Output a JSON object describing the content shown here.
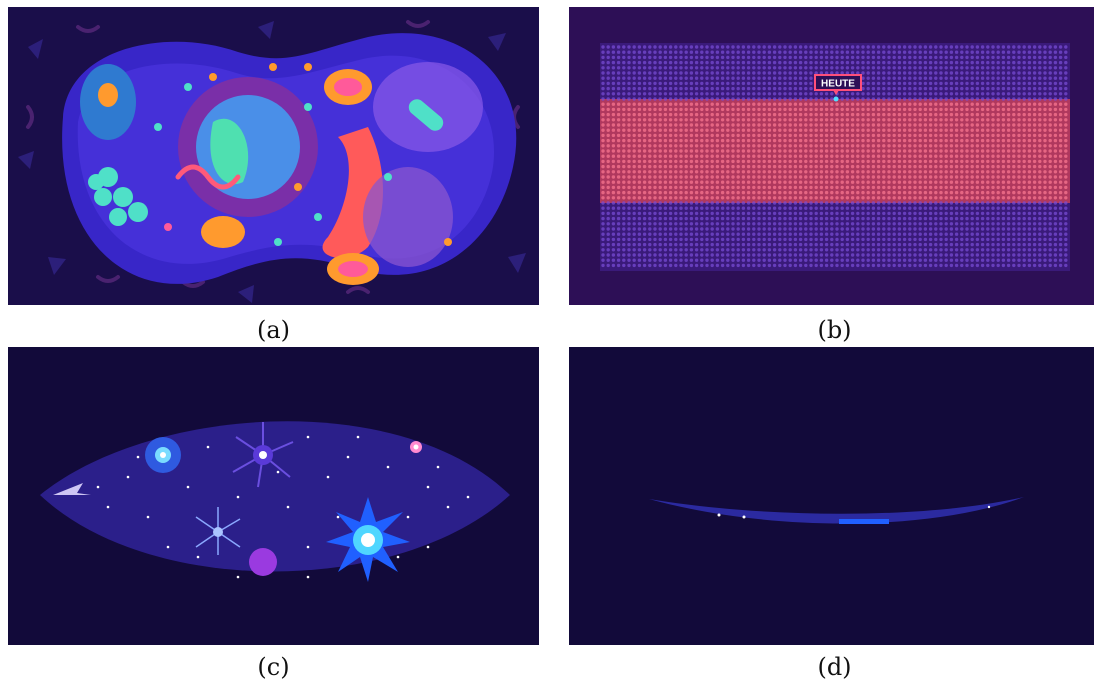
{
  "captions": {
    "a": "(a)",
    "b": "(b)",
    "c": "(c)",
    "d": "(d)"
  },
  "panel_b": {
    "marker_label": "HEUTE"
  },
  "colors": {
    "dark_navy": "#120a3a",
    "deep_purple": "#2d0f56",
    "cell_blue": "#3a22c9",
    "dot_purple": "#6b3fc9",
    "dot_pink": "#e0557a",
    "star_cyan": "#4fd6ff",
    "organelle_orange": "#ff9a2e",
    "organelle_teal": "#4fe0c8"
  }
}
